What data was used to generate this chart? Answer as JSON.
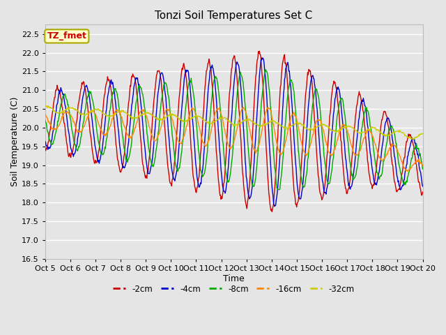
{
  "title": "Tonzi Soil Temperatures Set C",
  "xlabel": "Time",
  "ylabel": "Soil Temperature (C)",
  "ylim": [
    16.5,
    22.75
  ],
  "background_color": "#e5e5e5",
  "plot_bg_color": "#e5e5e5",
  "grid_color": "white",
  "colors": {
    "-2cm": "#cc0000",
    "-4cm": "#0000cc",
    "-8cm": "#00aa00",
    "-16cm": "#ff8800",
    "-32cm": "#cccc00"
  },
  "legend_labels": [
    "-2cm",
    "-4cm",
    "-8cm",
    "-16cm",
    "-32cm"
  ],
  "annotation_text": "TZ_fmet",
  "annotation_color": "#cc0000",
  "annotation_bg": "#ffffcc",
  "tick_labels": [
    "Oct 5",
    "Oct 6",
    "Oct 7",
    "Oct 8",
    "Oct 9",
    "Oct 10",
    "Oct 11",
    "Oct 12",
    "Oct 13",
    "Oct 14",
    "Oct 15",
    "Oct 16",
    "Oct 17",
    "Oct 18",
    "Oct 19",
    "Oct 20"
  ],
  "n_days": 15,
  "samples_per_day": 48,
  "title_fontsize": 11,
  "axis_fontsize": 9,
  "tick_fontsize": 8
}
